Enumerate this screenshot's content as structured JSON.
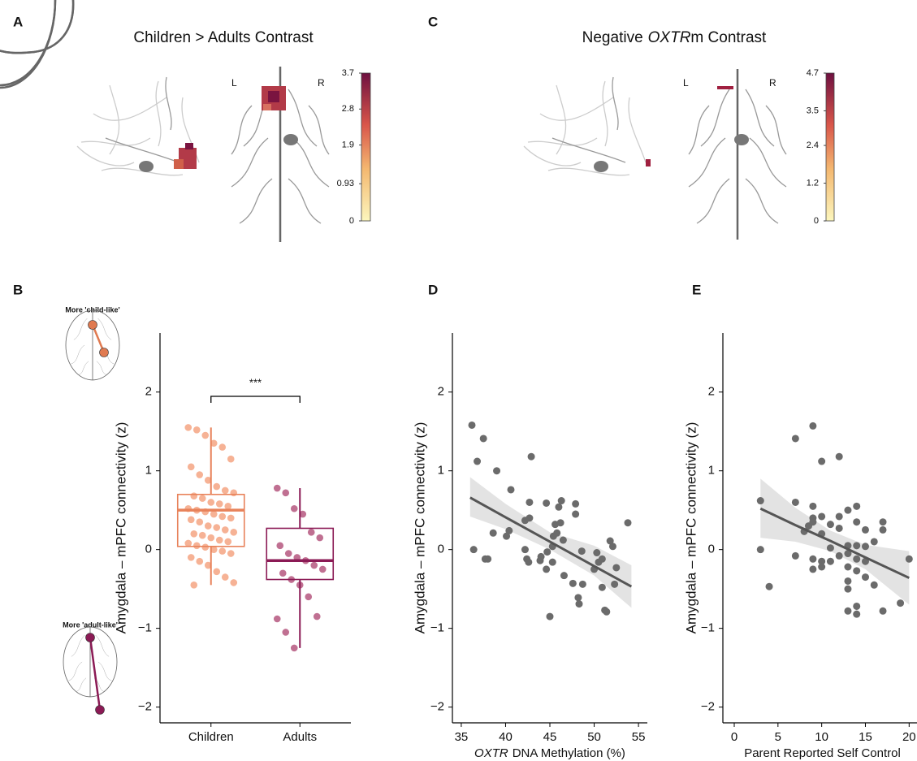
{
  "chart_data": [
    {
      "type": "brain-map",
      "panel_label": "A",
      "title": "Children > Adults Contrast",
      "hemisphere_labels": [
        "L",
        "R"
      ],
      "clim": [
        0,
        3.7
      ],
      "cticks": [
        0,
        0.93,
        1.9,
        2.8,
        3.7
      ]
    },
    {
      "type": "brain-map",
      "panel_label": "C",
      "title": "Negative",
      "title_italic": "OXTR",
      "title_suffix": "m  Contrast",
      "hemisphere_labels": [
        "L",
        "R"
      ],
      "clim": [
        0,
        4.7
      ],
      "cticks": [
        0,
        1.2,
        2.4,
        3.5,
        4.7
      ]
    },
    {
      "type": "box",
      "panel_label": "B",
      "ylabel": "Amygdala – mPFC connectivity (z)",
      "categories": [
        "Children",
        "Adults"
      ],
      "annotation": "***",
      "inset_labels": [
        "More 'child-like'",
        "More 'adult-like'"
      ],
      "ylim": [
        -2.2,
        2.75
      ],
      "yticks": [
        {
          "value": -2,
          "label": "−2"
        },
        {
          "value": -1,
          "label": "−1"
        },
        0,
        1,
        2
      ],
      "groups": [
        {
          "color": "#e8825a",
          "point_color": "#f4a582",
          "whisker_low": -0.45,
          "q1": 0.04,
          "median": 0.5,
          "q3": 0.7,
          "whisker_high": 1.55,
          "values": [
            1.55,
            1.52,
            1.45,
            1.35,
            1.3,
            1.15,
            1.05,
            0.95,
            0.88,
            0.8,
            0.75,
            0.72,
            0.68,
            0.65,
            0.6,
            0.58,
            0.55,
            0.52,
            0.5,
            0.48,
            0.45,
            0.42,
            0.4,
            0.38,
            0.35,
            0.3,
            0.28,
            0.25,
            0.22,
            0.2,
            0.18,
            0.15,
            0.12,
            0.1,
            0.08,
            0.05,
            0.03,
            0,
            -0.02,
            -0.05,
            -0.1,
            -0.15,
            -0.2,
            -0.28,
            -0.35,
            -0.42,
            -0.45
          ]
        },
        {
          "color": "#8b1a55",
          "point_color": "#b5577f",
          "whisker_low": -1.25,
          "q1": -0.38,
          "median": -0.14,
          "q3": 0.27,
          "whisker_high": 0.78,
          "values": [
            0.78,
            0.72,
            0.52,
            0.45,
            0.22,
            0.15,
            0.05,
            -0.05,
            -0.1,
            -0.14,
            -0.2,
            -0.25,
            -0.3,
            -0.38,
            -0.45,
            -0.6,
            -0.85,
            -0.88,
            -1.05,
            -1.25
          ]
        }
      ]
    },
    {
      "type": "scatter",
      "panel_label": "D",
      "ylabel": "Amygdala – mPFC connectivity (z)",
      "xlabel_italic": "OXTR",
      "xlabel": "DNA Methylation (%)",
      "color": "#6b6b6b",
      "xlim": [
        34,
        56
      ],
      "xticks": [
        35,
        40,
        45,
        50,
        55
      ],
      "ylim": [
        -2.2,
        2.75
      ],
      "yticks": [
        {
          "value": -2,
          "label": "−2"
        },
        {
          "value": -1,
          "label": "−1"
        },
        0,
        1,
        2
      ],
      "x": [
        36.2,
        37.5,
        36.8,
        39,
        42.9,
        40.6,
        36.4,
        37.7,
        38,
        38.6,
        40.4,
        40.1,
        42.7,
        42.7,
        42.2,
        42.2,
        42.4,
        42.6,
        44,
        43.9,
        44.6,
        44.6,
        44.7,
        45.3,
        45.4,
        45.6,
        45.8,
        46.2,
        46.3,
        46,
        46.5,
        45,
        45.3,
        46.6,
        47.9,
        47.9,
        47.6,
        48.2,
        48.3,
        48.6,
        48.7,
        50,
        50.3,
        50.5,
        50.9,
        51.2,
        51.4,
        51.8,
        52.1,
        52.5,
        50.9,
        53.8,
        52.3
      ],
      "y": [
        1.58,
        1.41,
        1.12,
        1,
        1.18,
        0.76,
        0,
        -0.12,
        -0.12,
        0.21,
        0.24,
        0.17,
        0.6,
        0.4,
        0.37,
        0,
        -0.12,
        -0.16,
        -0.09,
        -0.14,
        -0.25,
        0.59,
        -0.03,
        0.04,
        0.17,
        0.32,
        0.21,
        0.34,
        0.62,
        0.54,
        0.12,
        -0.85,
        -0.16,
        -0.33,
        0.58,
        0.45,
        -0.43,
        -0.61,
        -0.69,
        -0.02,
        -0.44,
        -0.25,
        -0.04,
        -0.16,
        -0.48,
        -0.77,
        -0.79,
        0.11,
        0.04,
        -0.23,
        -0.12,
        0.34,
        -0.44
      ],
      "fit": {
        "x": [
          36,
          40,
          45,
          50,
          54.2
        ],
        "y": [
          0.66,
          0.41,
          0.1,
          -0.21,
          -0.47
        ],
        "lower": [
          0.42,
          0.26,
          0,
          -0.33,
          -0.74
        ],
        "upper": [
          0.92,
          0.58,
          0.22,
          0.05,
          -0.2
        ]
      }
    },
    {
      "type": "scatter",
      "panel_label": "E",
      "ylabel": "Amygdala – mPFC connectivity (z)",
      "xlabel": "Parent Reported Self Control",
      "color": "#6b6b6b",
      "xlim": [
        -1.3,
        20.9
      ],
      "xticks": [
        0,
        5,
        10,
        15,
        20
      ],
      "ylim": [
        -2.2,
        2.75
      ],
      "yticks": [
        {
          "value": -2,
          "label": "−2"
        },
        {
          "value": -1,
          "label": "−1"
        },
        0,
        1,
        2
      ],
      "x": [
        3,
        3,
        4,
        7,
        7,
        7,
        8,
        8.5,
        9,
        9,
        9,
        9,
        9,
        9,
        10,
        10,
        10,
        10,
        10,
        11,
        11,
        11,
        12,
        12,
        12,
        12,
        13,
        13,
        13,
        13,
        13,
        13,
        13,
        14,
        14,
        14,
        14,
        14,
        14,
        14,
        15,
        15,
        15,
        15,
        16,
        16,
        17,
        17,
        17,
        19,
        20
      ],
      "y": [
        0.62,
        0,
        -0.47,
        1.41,
        0.6,
        -0.08,
        0.23,
        0.3,
        1.57,
        0.55,
        0.4,
        0.35,
        -0.12,
        -0.25,
        1.12,
        0.42,
        0.2,
        -0.15,
        -0.22,
        0.32,
        -0.15,
        0.02,
        1.18,
        0.42,
        0.27,
        -0.08,
        0.5,
        0.05,
        -0.05,
        -0.22,
        -0.4,
        -0.5,
        -0.78,
        0.55,
        0.35,
        0.05,
        -0.12,
        -0.27,
        -0.72,
        -0.82,
        0.25,
        0.04,
        -0.15,
        -0.35,
        0.1,
        -0.45,
        0.35,
        0.25,
        -0.78,
        -0.68,
        -0.12
      ],
      "fit": {
        "x": [
          3,
          7,
          11,
          15,
          20
        ],
        "y": [
          0.52,
          0.31,
          0.11,
          -0.1,
          -0.36
        ],
        "lower": [
          0.15,
          0.1,
          -0.02,
          -0.25,
          -0.7
        ],
        "upper": [
          0.9,
          0.53,
          0.24,
          0.06,
          -0.02
        ]
      }
    }
  ]
}
